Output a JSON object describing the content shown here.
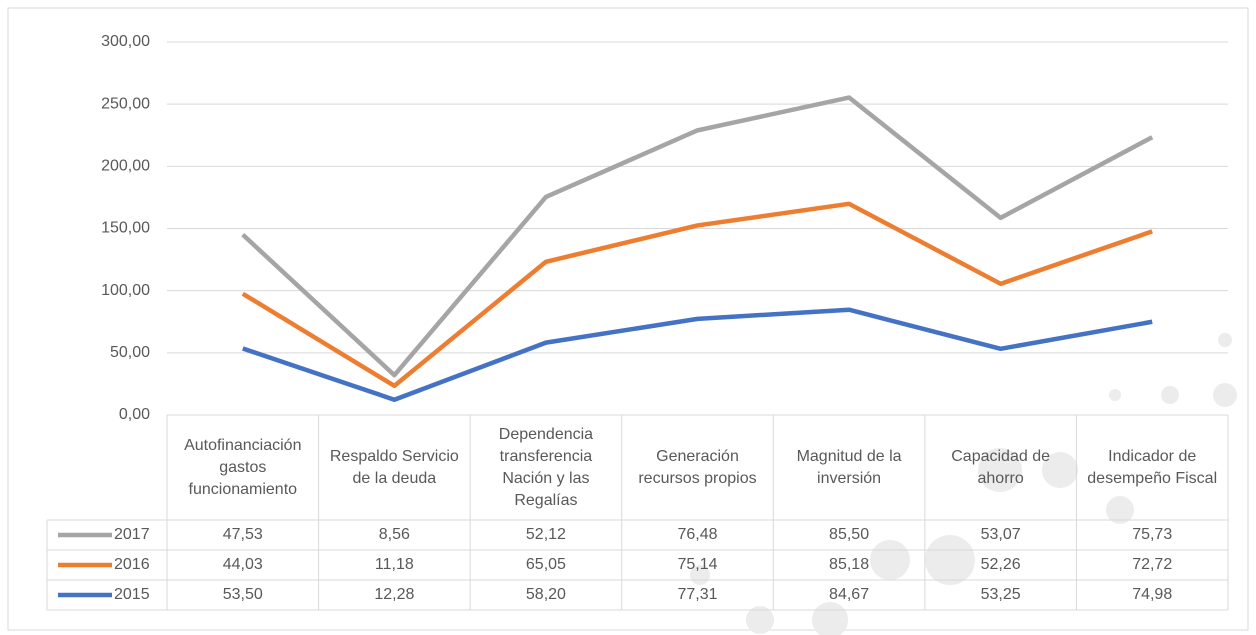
{
  "chart_data": {
    "type": "stacked-line",
    "categories": [
      "Autofinanciación gastos funcionamiento",
      "Respaldo Servicio de la deuda",
      "Dependencia transferencia Nación y las Regalías",
      "Generación recursos propios",
      "Magnitud de la inversión",
      "Capacidad de ahorro",
      "Indicador de desempeño Fiscal"
    ],
    "series": [
      {
        "name": "2017",
        "color": "#a5a5a5",
        "values": [
          47.53,
          8.56,
          52.12,
          76.48,
          85.5,
          53.07,
          75.73
        ],
        "value_labels": [
          "47,53",
          "8,56",
          "52,12",
          "76,48",
          "85,50",
          "53,07",
          "75,73"
        ]
      },
      {
        "name": "2016",
        "color": "#ed7d31",
        "values": [
          44.03,
          11.18,
          65.05,
          75.14,
          85.18,
          52.26,
          72.72
        ],
        "value_labels": [
          "44,03",
          "11,18",
          "65,05",
          "75,14",
          "85,18",
          "52,26",
          "72,72"
        ]
      },
      {
        "name": "2015",
        "color": "#4472c4",
        "values": [
          53.5,
          12.28,
          58.2,
          77.31,
          84.67,
          53.25,
          74.98
        ],
        "value_labels": [
          "53,50",
          "12,28",
          "58,20",
          "77,31",
          "84,67",
          "53,25",
          "74,98"
        ]
      }
    ],
    "ylim": [
      0,
      300
    ],
    "yticks": [
      {
        "value": 0,
        "label": "0,00"
      },
      {
        "value": 50,
        "label": "50,00"
      },
      {
        "value": 100,
        "label": "100,00"
      },
      {
        "value": 150,
        "label": "150,00"
      },
      {
        "value": 200,
        "label": "200,00"
      },
      {
        "value": 250,
        "label": "250,00"
      },
      {
        "value": 300,
        "label": "300,00"
      }
    ],
    "grid": true
  }
}
